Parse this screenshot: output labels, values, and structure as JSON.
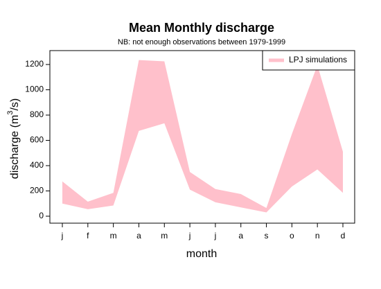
{
  "chart_data": {
    "type": "band",
    "title": "Mean Monthly discharge",
    "subtitle": "NB: not enough observations between 1979-1999",
    "x_label": "month",
    "y_label_parts": [
      "discharge (m",
      "3",
      "/s)"
    ],
    "categories": [
      "j",
      "f",
      "m",
      "a",
      "m",
      "j",
      "j",
      "a",
      "s",
      "o",
      "n",
      "d"
    ],
    "series": [
      {
        "name": "LPJ simulations",
        "color": "#ffc0cb",
        "upper": [
          275,
          115,
          185,
          1235,
          1225,
          350,
          215,
          175,
          65,
          650,
          1195,
          510
        ],
        "lower": [
          100,
          55,
          85,
          675,
          735,
          210,
          110,
          70,
          30,
          235,
          370,
          185
        ]
      }
    ],
    "ylim": [
      -55,
      1310
    ],
    "yticks": [
      0,
      200,
      400,
      600,
      800,
      1000,
      1200
    ],
    "legend": "top-right"
  }
}
